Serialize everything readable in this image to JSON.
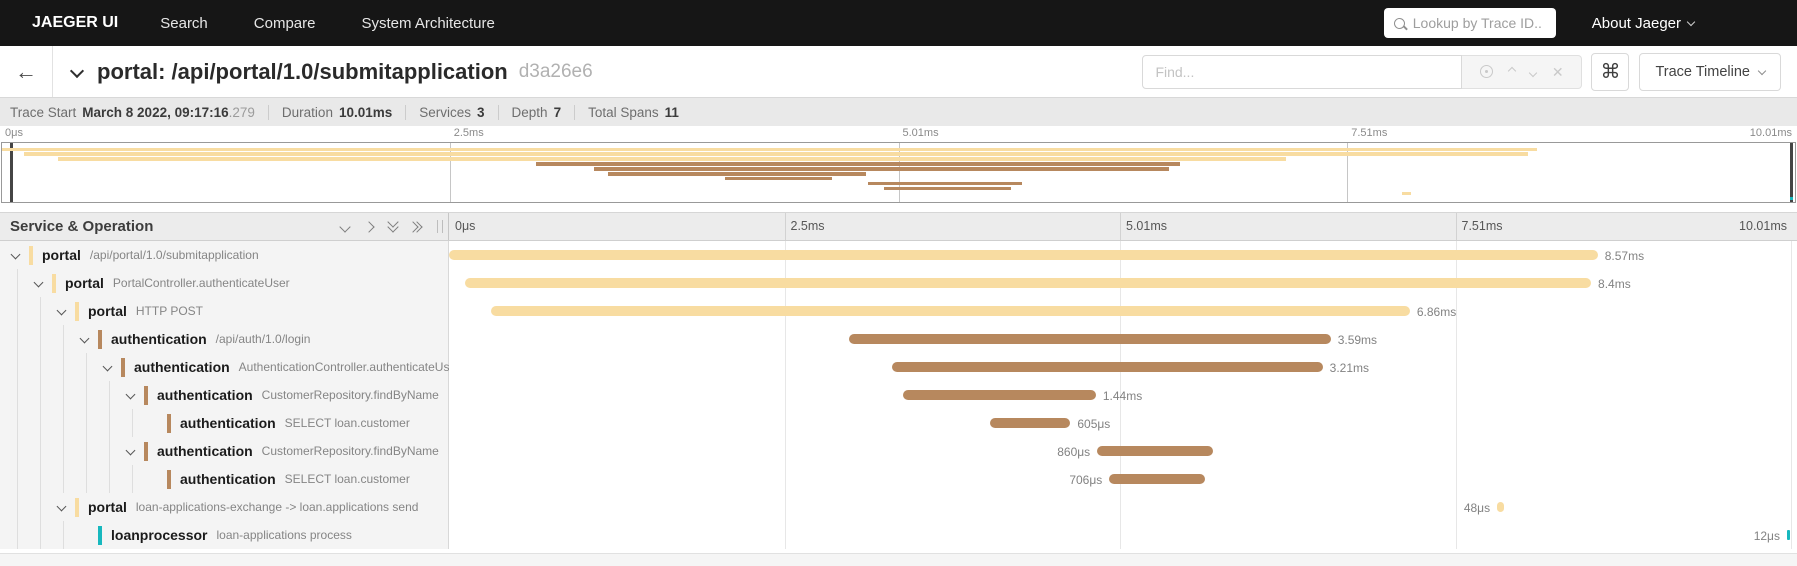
{
  "nav": {
    "brand": "JAEGER UI",
    "items": [
      "Search",
      "Compare",
      "System Architecture"
    ],
    "trace_lookup_placeholder": "Lookup by Trace ID...",
    "about_label": "About Jaeger"
  },
  "trace_header": {
    "back_arrow": "←",
    "title": "portal: /api/portal/1.0/submitapplication",
    "trace_id": "d3a26e6",
    "find_placeholder": "Find...",
    "keyboard_shortcut": "⌘",
    "clear_icon": "✕",
    "view_selector_label": "Trace Timeline"
  },
  "trace_info": {
    "items": [
      {
        "label": "Trace Start",
        "value": "March 8 2022, 09:17:16",
        "suffix": ".279"
      },
      {
        "label": "Duration",
        "value": "10.01ms",
        "suffix": ""
      },
      {
        "label": "Services",
        "value": "3",
        "suffix": ""
      },
      {
        "label": "Depth",
        "value": "7",
        "suffix": ""
      },
      {
        "label": "Total Spans",
        "value": "11",
        "suffix": ""
      }
    ]
  },
  "timeline": {
    "header_label": "Service & Operation",
    "ticks": [
      "0μs",
      "2.5ms",
      "5.01ms",
      "7.51ms",
      "10.01ms"
    ],
    "total_duration": "10.01ms"
  },
  "service_colors": {
    "portal": "#F8DCA1",
    "authentication": "#B7885E",
    "loanprocessor": "#17B8BE"
  },
  "spans": [
    {
      "service": "portal",
      "operation": "/api/portal/1.0/submitapplication",
      "level": 0,
      "has_children": true,
      "start_pct": 0,
      "width_pct": 85.6,
      "duration": "8.57ms",
      "label_side": "right"
    },
    {
      "service": "portal",
      "operation": "PortalController.authenticateUser",
      "level": 1,
      "has_children": true,
      "start_pct": 1.2,
      "width_pct": 83.9,
      "duration": "8.4ms",
      "label_side": "right"
    },
    {
      "service": "portal",
      "operation": "HTTP POST",
      "level": 2,
      "has_children": true,
      "start_pct": 3.1,
      "width_pct": 68.5,
      "duration": "6.86ms",
      "label_side": "right"
    },
    {
      "service": "authentication",
      "operation": "/api/auth/1.0/login",
      "level": 3,
      "has_children": true,
      "start_pct": 29.8,
      "width_pct": 35.9,
      "duration": "3.59ms",
      "label_side": "right"
    },
    {
      "service": "authentication",
      "operation": "AuthenticationController.authenticateUser",
      "level": 4,
      "has_children": true,
      "start_pct": 33.0,
      "width_pct": 32.1,
      "duration": "3.21ms",
      "label_side": "right"
    },
    {
      "service": "authentication",
      "operation": "CustomerRepository.findByName",
      "level": 5,
      "has_children": true,
      "start_pct": 33.8,
      "width_pct": 14.4,
      "duration": "1.44ms",
      "label_side": "right"
    },
    {
      "service": "authentication",
      "operation": "SELECT loan.customer",
      "level": 6,
      "has_children": false,
      "start_pct": 40.3,
      "width_pct": 6.0,
      "duration": "605μs",
      "label_side": "right"
    },
    {
      "service": "authentication",
      "operation": "CustomerRepository.findByName",
      "level": 5,
      "has_children": true,
      "start_pct": 48.3,
      "width_pct": 8.6,
      "duration": "860μs",
      "label_side": "left"
    },
    {
      "service": "authentication",
      "operation": "SELECT loan.customer",
      "level": 6,
      "has_children": false,
      "start_pct": 49.2,
      "width_pct": 7.1,
      "duration": "706μs",
      "label_side": "left"
    },
    {
      "service": "portal",
      "operation": "loan-applications-exchange -> loan.applications send",
      "level": 2,
      "has_children": true,
      "start_pct": 78.1,
      "width_pct": 0.5,
      "duration": "48μs",
      "label_side": "left"
    },
    {
      "service": "loanprocessor",
      "operation": "loan-applications process",
      "level": 3,
      "has_children": false,
      "start_pct": 99.7,
      "width_pct": 0.2,
      "duration": "12μs",
      "label_side": "left"
    }
  ]
}
